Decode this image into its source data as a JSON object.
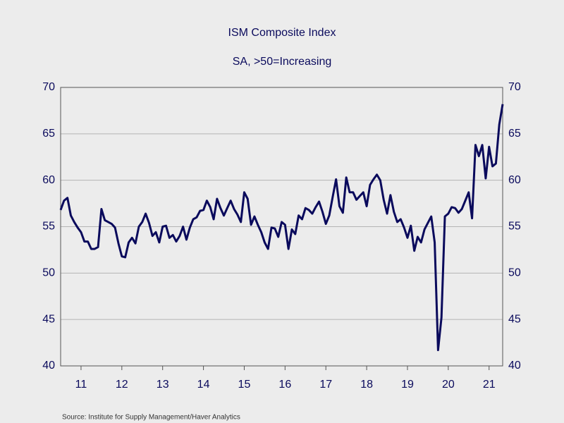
{
  "chart_data": {
    "type": "line",
    "title": "ISM Composite Index",
    "subtitle": "SA, >50=Increasing",
    "source": "Source:  Institute for Supply Management/Haver Analytics",
    "x": [
      2011.0,
      2011.083,
      2011.167,
      2011.25,
      2011.333,
      2011.417,
      2011.5,
      2011.583,
      2011.667,
      2011.75,
      2011.833,
      2011.917,
      2012.0,
      2012.083,
      2012.167,
      2012.25,
      2012.333,
      2012.417,
      2012.5,
      2012.583,
      2012.667,
      2012.75,
      2012.833,
      2012.917,
      2013.0,
      2013.083,
      2013.167,
      2013.25,
      2013.333,
      2013.417,
      2013.5,
      2013.583,
      2013.667,
      2013.75,
      2013.833,
      2013.917,
      2014.0,
      2014.083,
      2014.167,
      2014.25,
      2014.333,
      2014.417,
      2014.5,
      2014.583,
      2014.667,
      2014.75,
      2014.833,
      2014.917,
      2015.0,
      2015.083,
      2015.167,
      2015.25,
      2015.333,
      2015.417,
      2015.5,
      2015.583,
      2015.667,
      2015.75,
      2015.833,
      2015.917,
      2016.0,
      2016.083,
      2016.167,
      2016.25,
      2016.333,
      2016.417,
      2016.5,
      2016.583,
      2016.667,
      2016.75,
      2016.833,
      2016.917,
      2017.0,
      2017.083,
      2017.167,
      2017.25,
      2017.333,
      2017.417,
      2017.5,
      2017.583,
      2017.667,
      2017.75,
      2017.833,
      2017.917,
      2018.0,
      2018.083,
      2018.167,
      2018.25,
      2018.333,
      2018.417,
      2018.5,
      2018.583,
      2018.667,
      2018.75,
      2018.833,
      2018.917,
      2019.0,
      2019.083,
      2019.167,
      2019.25,
      2019.333,
      2019.417,
      2019.5,
      2019.583,
      2019.667,
      2019.75,
      2019.833,
      2019.917,
      2020.0,
      2020.083,
      2020.167,
      2020.25,
      2020.333,
      2020.417,
      2020.5,
      2020.583,
      2020.667,
      2020.75,
      2020.833,
      2020.917,
      2021.0,
      2021.083,
      2021.167,
      2021.25,
      2021.333,
      2021.417,
      2021.5,
      2021.583,
      2021.667,
      2021.75,
      2021.833
    ],
    "series": [
      {
        "color": "#0a0a5c",
        "values": [
          56.8,
          57.8,
          58.1,
          56.2,
          55.5,
          54.9,
          54.4,
          53.4,
          53.4,
          52.6,
          52.6,
          52.8,
          56.9,
          55.7,
          55.5,
          55.3,
          54.9,
          53.2,
          51.8,
          51.7,
          53.3,
          53.8,
          53.2,
          55.0,
          55.5,
          56.4,
          55.4,
          54.0,
          54.4,
          53.3,
          55.0,
          55.1,
          53.8,
          54.1,
          53.4,
          54.0,
          55.0,
          53.6,
          54.9,
          55.8,
          56.0,
          56.7,
          56.8,
          57.8,
          57.1,
          55.8,
          58.0,
          57.0,
          56.2,
          57.0,
          57.8,
          56.9,
          56.3,
          55.5,
          58.7,
          58.0,
          55.2,
          56.1,
          55.2,
          54.4,
          53.3,
          52.6,
          54.9,
          54.8,
          53.9,
          55.5,
          55.2,
          52.6,
          54.7,
          54.2,
          56.2,
          55.8,
          57.0,
          56.8,
          56.4,
          57.1,
          57.7,
          56.6,
          55.3,
          56.2,
          58.2,
          60.1,
          57.2,
          56.5,
          60.3,
          58.7,
          58.7,
          57.9,
          58.3,
          58.7,
          57.2,
          59.5,
          60.1,
          60.6,
          60.0,
          57.9,
          56.4,
          58.4,
          56.6,
          55.5,
          55.8,
          54.9,
          53.8,
          55.1,
          52.4,
          53.9,
          53.3,
          54.7,
          55.4,
          56.1,
          53.3,
          41.7,
          45.2,
          56.1,
          56.4,
          57.1,
          57.0,
          56.5,
          56.9,
          57.8,
          58.7,
          55.9,
          63.8,
          62.6,
          63.8,
          60.2,
          63.6,
          61.5,
          61.8,
          66.0,
          68.2
        ]
      }
    ],
    "xlim": [
      2011.0,
      2021.833
    ],
    "xticks": [
      {
        "value": 2011.5,
        "label": "11"
      },
      {
        "value": 2012.5,
        "label": "12"
      },
      {
        "value": 2013.5,
        "label": "13"
      },
      {
        "value": 2014.5,
        "label": "14"
      },
      {
        "value": 2015.5,
        "label": "15"
      },
      {
        "value": 2016.5,
        "label": "16"
      },
      {
        "value": 2017.5,
        "label": "17"
      },
      {
        "value": 2018.5,
        "label": "18"
      },
      {
        "value": 2019.5,
        "label": "19"
      },
      {
        "value": 2020.5,
        "label": "20"
      },
      {
        "value": 2021.5,
        "label": "21"
      }
    ],
    "ylim": [
      40,
      70
    ],
    "yticks": [
      40,
      45,
      50,
      55,
      60,
      65,
      70
    ],
    "grid": true
  }
}
